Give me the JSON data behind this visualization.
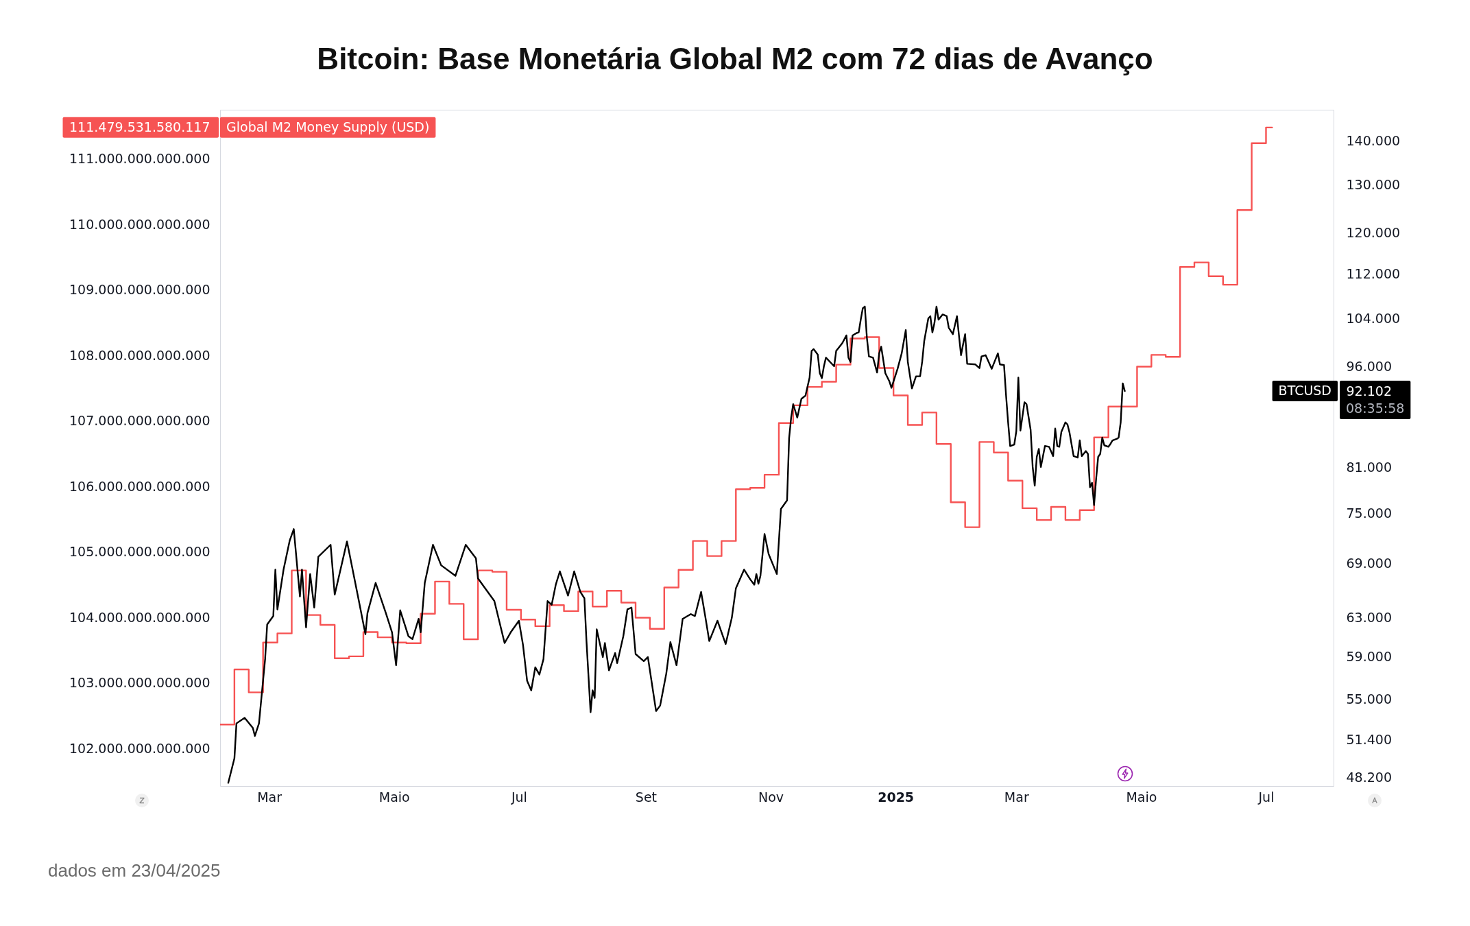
{
  "chart_data": {
    "type": "line",
    "title": "Bitcoin: Base Monetária Global M2 com 72 dias de Avanço",
    "xlim": [
      "2024-02-06",
      "2025-08-03"
    ],
    "xticks": [
      {
        "value": "2024-03-01",
        "label": "Mar"
      },
      {
        "value": "2024-05-01",
        "label": "Maio"
      },
      {
        "value": "2024-07-01",
        "label": "Jul"
      },
      {
        "value": "2024-09-01",
        "label": "Set"
      },
      {
        "value": "2024-11-01",
        "label": "Nov"
      },
      {
        "value": "2025-01-01",
        "label": "2025"
      },
      {
        "value": "2025-03-01",
        "label": "Mar"
      },
      {
        "value": "2025-05-01",
        "label": "Maio"
      },
      {
        "value": "2025-07-01",
        "label": "Jul"
      }
    ],
    "ylim": [
      101430000000000,
      111750000000000
    ],
    "yticks": [
      {
        "value": 102000000000000,
        "label": "102.000.000.000.000"
      },
      {
        "value": 103000000000000,
        "label": "103.000.000.000.000"
      },
      {
        "value": 104000000000000,
        "label": "104.000.000.000.000"
      },
      {
        "value": 105000000000000,
        "label": "105.000.000.000.000"
      },
      {
        "value": 106000000000000,
        "label": "106.000.000.000.000"
      },
      {
        "value": 107000000000000,
        "label": "107.000.000.000.000"
      },
      {
        "value": 108000000000000,
        "label": "108.000.000.000.000"
      },
      {
        "value": 109000000000000,
        "label": "109.000.000.000.000"
      },
      {
        "value": 110000000000000,
        "label": "110.000.000.000.000"
      },
      {
        "value": 111000000000000,
        "label": "111.000.000.000.000"
      },
      {
        "value": 111479531580117,
        "label": "111.479.531.580.117"
      }
    ],
    "y2lim": [
      47540,
      147500
    ],
    "y2ticks": [
      {
        "value": 48200,
        "label": "48.200"
      },
      {
        "value": 51400,
        "label": "51.400"
      },
      {
        "value": 55000,
        "label": "55.000"
      },
      {
        "value": 59000,
        "label": "59.000"
      },
      {
        "value": 63000,
        "label": "63.000"
      },
      {
        "value": 69000,
        "label": "69.000"
      },
      {
        "value": 75000,
        "label": "75.000"
      },
      {
        "value": 81000,
        "label": "81.000"
      },
      {
        "value": 92102,
        "label": "92.102"
      },
      {
        "value": 96000,
        "label": "96.000"
      },
      {
        "value": 104000,
        "label": "104.000"
      },
      {
        "value": 112000,
        "label": "112.000"
      },
      {
        "value": 120000,
        "label": "120.000"
      },
      {
        "value": 130000,
        "label": "130.000"
      },
      {
        "value": 140000,
        "label": "140.000"
      }
    ],
    "log": "y2",
    "annotations": [
      "dados em 23/04/2025",
      "08:35:58"
    ],
    "series": [
      {
        "name": "Global M2 Money Supply (USD)",
        "type": "step",
        "color": "#f65353",
        "axis": "y",
        "x": [
          "2024-02-06",
          "2024-02-13",
          "2024-02-20",
          "2024-02-27",
          "2024-03-05",
          "2024-03-12",
          "2024-03-19",
          "2024-03-26",
          "2024-04-02",
          "2024-04-09",
          "2024-04-16",
          "2024-04-23",
          "2024-04-30",
          "2024-05-07",
          "2024-05-14",
          "2024-05-21",
          "2024-05-28",
          "2024-06-04",
          "2024-06-11",
          "2024-06-18",
          "2024-06-25",
          "2024-07-02",
          "2024-07-09",
          "2024-07-16",
          "2024-07-23",
          "2024-07-30",
          "2024-08-06",
          "2024-08-13",
          "2024-08-20",
          "2024-08-27",
          "2024-09-03",
          "2024-09-10",
          "2024-09-17",
          "2024-09-24",
          "2024-10-01",
          "2024-10-08",
          "2024-10-15",
          "2024-10-22",
          "2024-10-29",
          "2024-11-05",
          "2024-11-12",
          "2024-11-19",
          "2024-11-26",
          "2024-12-03",
          "2024-12-10",
          "2024-12-17",
          "2024-12-24",
          "2024-12-31",
          "2025-01-07",
          "2025-01-14",
          "2025-01-21",
          "2025-01-28",
          "2025-02-04",
          "2025-02-11",
          "2025-02-18",
          "2025-02-25",
          "2025-03-04",
          "2025-03-11",
          "2025-03-18",
          "2025-03-25",
          "2025-04-01",
          "2025-04-08",
          "2025-04-15",
          "2025-04-29",
          "2025-05-06",
          "2025-05-13",
          "2025-05-20",
          "2025-05-27",
          "2025-06-03",
          "2025-06-10",
          "2025-06-17",
          "2025-06-24",
          "2025-07-01",
          "2025-07-04"
        ],
        "values": [
          102370000000000,
          103210000000000,
          102860000000000,
          103620000000000,
          103760000000000,
          104720000000000,
          104040000000000,
          103890000000000,
          103380000000000,
          103410000000000,
          103780000000000,
          103700000000000,
          103620000000000,
          103610000000000,
          104060000000000,
          104550000000000,
          104210000000000,
          103670000000000,
          104720000000000,
          104700000000000,
          104120000000000,
          103970000000000,
          103870000000000,
          104190000000000,
          104100000000000,
          104400000000000,
          104170000000000,
          104410000000000,
          104230000000000,
          104000000000000,
          103830000000000,
          104460000000000,
          104730000000000,
          105170000000000,
          104940000000000,
          105170000000000,
          105960000000000,
          105980000000000,
          106180000000000,
          106970000000000,
          107240000000000,
          107520000000000,
          107600000000000,
          107860000000000,
          108260000000000,
          108280000000000,
          107810000000000,
          107390000000000,
          106940000000000,
          107130000000000,
          106650000000000,
          105760000000000,
          105380000000000,
          106680000000000,
          106520000000000,
          106090000000000,
          105670000000000,
          105490000000000,
          105690000000000,
          105490000000000,
          105640000000000,
          106750000000000,
          107220000000000,
          107830000000000,
          108010000000000,
          107980000000000,
          109350000000000,
          109420000000000,
          109210000000000,
          109080000000000,
          110220000000000,
          111240000000000,
          111479531580117,
          111479531580117
        ]
      },
      {
        "name": "BTCUSD",
        "type": "line",
        "color": "#000000",
        "axis": "y2",
        "x": [
          "2024-02-10",
          "2024-02-13",
          "2024-02-14",
          "2024-02-18",
          "2024-02-22",
          "2024-02-23",
          "2024-02-25",
          "2024-02-28",
          "2024-02-29",
          "2024-03-03",
          "2024-03-04",
          "2024-03-05",
          "2024-03-08",
          "2024-03-11",
          "2024-03-13",
          "2024-03-16",
          "2024-03-17",
          "2024-03-19",
          "2024-03-21",
          "2024-03-23",
          "2024-03-25",
          "2024-03-31",
          "2024-04-02",
          "2024-04-08",
          "2024-04-14",
          "2024-04-17",
          "2024-04-18",
          "2024-04-22",
          "2024-04-27",
          "2024-04-30",
          "2024-05-02",
          "2024-05-04",
          "2024-05-08",
          "2024-05-10",
          "2024-05-13",
          "2024-05-14",
          "2024-05-16",
          "2024-05-20",
          "2024-05-24",
          "2024-05-31",
          "2024-06-05",
          "2024-06-10",
          "2024-06-11",
          "2024-06-19",
          "2024-06-24",
          "2024-06-27",
          "2024-07-01",
          "2024-07-03",
          "2024-07-05",
          "2024-07-07",
          "2024-07-09",
          "2024-07-11",
          "2024-07-13",
          "2024-07-15",
          "2024-07-17",
          "2024-07-19",
          "2024-07-21",
          "2024-07-25",
          "2024-07-28",
          "2024-07-31",
          "2024-08-02",
          "2024-08-03",
          "2024-08-05",
          "2024-08-06",
          "2024-08-07",
          "2024-08-08",
          "2024-08-11",
          "2024-08-12",
          "2024-08-14",
          "2024-08-17",
          "2024-08-18",
          "2024-08-21",
          "2024-08-23",
          "2024-08-25",
          "2024-08-27",
          "2024-08-31",
          "2024-09-02",
          "2024-09-06",
          "2024-09-08",
          "2024-09-11",
          "2024-09-13",
          "2024-09-16",
          "2024-09-19",
          "2024-09-23",
          "2024-09-25",
          "2024-09-28",
          "2024-09-30",
          "2024-10-02",
          "2024-10-06",
          "2024-10-10",
          "2024-10-13",
          "2024-10-15",
          "2024-10-19",
          "2024-10-22",
          "2024-10-24",
          "2024-10-25",
          "2024-10-26",
          "2024-10-27",
          "2024-10-29",
          "2024-10-31",
          "2024-11-04",
          "2024-11-06",
          "2024-11-09",
          "2024-11-10",
          "2024-11-11",
          "2024-11-12",
          "2024-11-14",
          "2024-11-16",
          "2024-11-18",
          "2024-11-20",
          "2024-11-21",
          "2024-11-22",
          "2024-11-24",
          "2024-11-25",
          "2024-11-26",
          "2024-11-27",
          "2024-11-28",
          "2024-12-02",
          "2024-12-03",
          "2024-12-06",
          "2024-12-08",
          "2024-12-09",
          "2024-12-10",
          "2024-12-11",
          "2024-12-13",
          "2024-12-14",
          "2024-12-15",
          "2024-12-16",
          "2024-12-17",
          "2024-12-18",
          "2024-12-19",
          "2024-12-21",
          "2024-12-23",
          "2024-12-24",
          "2024-12-25",
          "2024-12-27",
          "2024-12-29",
          "2024-12-30",
          "2025-01-02",
          "2025-01-04",
          "2025-01-06",
          "2025-01-07",
          "2025-01-09",
          "2025-01-11",
          "2025-01-13",
          "2025-01-14",
          "2025-01-15",
          "2025-01-17",
          "2025-01-18",
          "2025-01-19",
          "2025-01-20",
          "2025-01-21",
          "2025-01-22",
          "2025-01-24",
          "2025-01-26",
          "2025-01-27",
          "2025-01-29",
          "2025-01-31",
          "2025-02-02",
          "2025-02-03",
          "2025-02-04",
          "2025-02-05",
          "2025-02-09",
          "2025-02-11",
          "2025-02-12",
          "2025-02-14",
          "2025-02-17",
          "2025-02-20",
          "2025-02-21",
          "2025-02-23",
          "2025-02-24",
          "2025-02-25",
          "2025-02-26",
          "2025-02-28",
          "2025-03-01",
          "2025-03-02",
          "2025-03-03",
          "2025-03-05",
          "2025-03-06",
          "2025-03-08",
          "2025-03-09",
          "2025-03-10",
          "2025-03-11",
          "2025-03-12",
          "2025-03-13",
          "2025-03-15",
          "2025-03-17",
          "2025-03-19",
          "2025-03-20",
          "2025-03-21",
          "2025-03-22",
          "2025-03-23",
          "2025-03-25",
          "2025-03-26",
          "2025-03-27",
          "2025-03-29",
          "2025-03-31",
          "2025-04-01",
          "2025-04-02",
          "2025-04-04",
          "2025-04-05",
          "2025-04-06",
          "2025-04-07",
          "2025-04-08",
          "2025-04-09",
          "2025-04-10",
          "2025-04-11",
          "2025-04-12",
          "2025-04-13",
          "2025-04-15",
          "2025-04-16",
          "2025-04-17",
          "2025-04-19",
          "2025-04-20",
          "2025-04-21",
          "2025-04-22",
          "2025-04-23"
        ],
        "values": [
          47800,
          49800,
          52800,
          53300,
          52400,
          51700,
          52800,
          58800,
          62300,
          63200,
          68300,
          63900,
          68300,
          71700,
          73100,
          65300,
          68300,
          62000,
          67800,
          64100,
          69800,
          71200,
          65500,
          71600,
          64600,
          61300,
          63500,
          66800,
          63500,
          61500,
          58200,
          63800,
          61100,
          60800,
          62900,
          61500,
          66800,
          71200,
          68800,
          67600,
          71200,
          69600,
          67300,
          64800,
          60400,
          61500,
          62700,
          60200,
          56700,
          55800,
          58000,
          57300,
          58800,
          64800,
          64400,
          66600,
          68100,
          65400,
          68100,
          65800,
          65100,
          60600,
          53800,
          55800,
          55100,
          61800,
          59000,
          60400,
          57700,
          59400,
          58400,
          61100,
          63900,
          64100,
          59300,
          58600,
          59000,
          53900,
          54400,
          57400,
          60500,
          58200,
          62900,
          63400,
          63200,
          65800,
          63200,
          60600,
          62700,
          60300,
          63000,
          66200,
          68300,
          67200,
          66600,
          67800,
          66700,
          67600,
          72500,
          70100,
          67800,
          75600,
          76700,
          85100,
          88100,
          90100,
          88100,
          90900,
          91400,
          94200,
          98500,
          98800,
          97900,
          94900,
          94100,
          96000,
          97400,
          96000,
          98500,
          99800,
          101100,
          97400,
          96700,
          101100,
          101500,
          101600,
          103800,
          105800,
          106100,
          100700,
          97600,
          97400,
          95000,
          98100,
          99200,
          94900,
          93600,
          92600,
          95600,
          98100,
          102000,
          96700,
          92500,
          94400,
          94400,
          96700,
          100100,
          104000,
          104400,
          101600,
          103200,
          106100,
          103800,
          104700,
          104400,
          102400,
          101300,
          104400,
          97800,
          99600,
          101300,
          96400,
          96300,
          95700,
          97600,
          97800,
          95600,
          98100,
          96300,
          96200,
          91400,
          87400,
          84000,
          84200,
          86100,
          94200,
          86200,
          90400,
          90100,
          86300,
          81100,
          78600,
          82500,
          83600,
          81100,
          84000,
          83900,
          82600,
          86500,
          84000,
          83900,
          86000,
          87400,
          87100,
          85900,
          82600,
          82400,
          84800,
          82600,
          83300,
          82900,
          78400,
          79000,
          76100,
          79500,
          82500,
          82900,
          85200,
          84100,
          83900,
          84300,
          84800,
          85000,
          85200,
          87400,
          93300,
          92102
        ]
      }
    ]
  }
}
